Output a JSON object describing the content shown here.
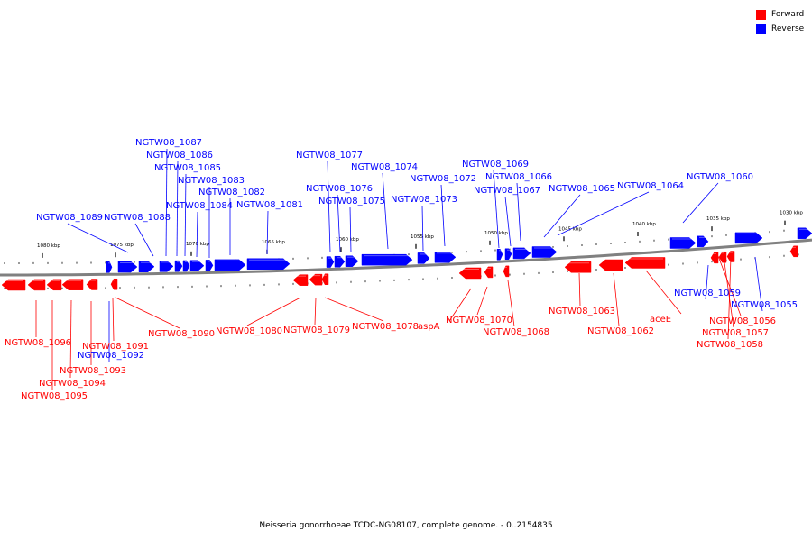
{
  "legend": [
    {
      "label": "Forward",
      "color": "#ff0000"
    },
    {
      "label": "Reverse",
      "color": "#0000ff"
    }
  ],
  "colors": {
    "forward": "#ff0000",
    "reverse": "#0000ff",
    "backbone": "#808080"
  },
  "caption": "Neisseria gonorrhoeae TCDC-NG08107, complete genome. - 0..2154835",
  "ticks": [
    "1080 kbp",
    "1075 kbp",
    "1070 kbp",
    "1065 kbp",
    "1060 kbp",
    "1055 kbp",
    "1050 kbp",
    "1045 kbp",
    "1040 kbp",
    "1035 kbp",
    "1030 kbp"
  ],
  "reverse_labels": [
    "NGTW08_1089",
    "NGTW08_1088",
    "NGTW08_1087",
    "NGTW08_1086",
    "NGTW08_1085",
    "NGTW08_1084",
    "NGTW08_1083",
    "NGTW08_1082",
    "NGTW08_1081",
    "NGTW08_1077",
    "NGTW08_1076",
    "NGTW08_1075",
    "NGTW08_1074",
    "NGTW08_1073",
    "NGTW08_1072",
    "NGTW08_1069",
    "NGTW08_1067",
    "NGTW08_1066",
    "NGTW08_1065",
    "NGTW08_1064",
    "NGTW08_1060",
    "NGTW08_1059",
    "NGTW08_1055",
    "NGTW08_1092"
  ],
  "forward_labels": [
    "NGTW08_1096",
    "NGTW08_1095",
    "NGTW08_1094",
    "NGTW08_1093",
    "NGTW08_1091",
    "NGTW08_1090",
    "NGTW08_1080",
    "NGTW08_1079",
    "NGTW08_1078",
    "aspA",
    "NGTW08_1070",
    "NGTW08_1068",
    "NGTW08_1063",
    "NGTW08_1062",
    "aceE",
    "NGTW08_1056",
    "NGTW08_1057",
    "NGTW08_1058"
  ]
}
